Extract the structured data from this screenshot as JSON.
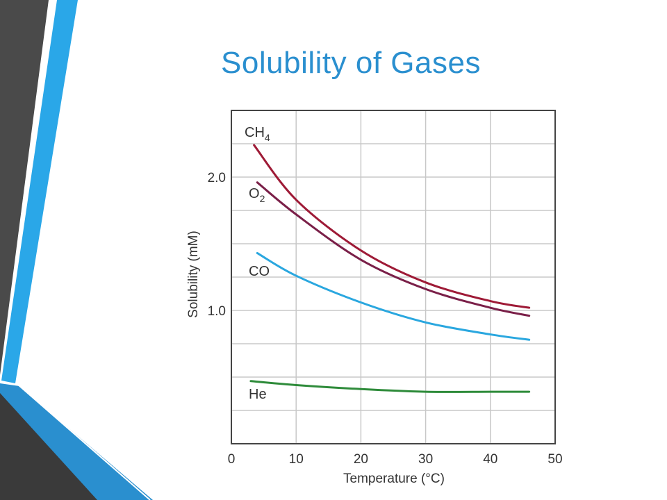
{
  "slide": {
    "title": "Solubility of Gases"
  },
  "chart_data": {
    "type": "line",
    "title": "",
    "xlabel": "Temperature (°C)",
    "ylabel": "Solubility (mM)",
    "xlim": [
      0,
      50
    ],
    "ylim": [
      0,
      2.5
    ],
    "x_ticks": [
      0,
      10,
      20,
      30,
      40,
      50
    ],
    "x_tick_labels": [
      "0",
      "10",
      "20",
      "30",
      "40",
      "50"
    ],
    "y_ticks": [
      1.0,
      2.0
    ],
    "y_tick_labels": [
      "1.0",
      "2.0"
    ],
    "grid": true,
    "series": [
      {
        "name": "CH4",
        "label_main": "CH",
        "label_sub": "4",
        "color": "#9e1a36",
        "x": [
          3.5,
          10,
          20,
          30,
          40,
          46
        ],
        "y": [
          2.24,
          1.83,
          1.45,
          1.21,
          1.07,
          1.02
        ]
      },
      {
        "name": "O2",
        "label_main": "O",
        "label_sub": "2",
        "color": "#7a1f48",
        "x": [
          4,
          10,
          20,
          30,
          40,
          46
        ],
        "y": [
          1.96,
          1.72,
          1.38,
          1.16,
          1.02,
          0.96
        ]
      },
      {
        "name": "CO",
        "label_main": "CO",
        "label_sub": "",
        "color": "#2aa7df",
        "x": [
          4,
          10,
          20,
          30,
          40,
          46
        ],
        "y": [
          1.43,
          1.26,
          1.06,
          0.91,
          0.82,
          0.78
        ]
      },
      {
        "name": "He",
        "label_main": "He",
        "label_sub": "",
        "color": "#2e8b3a",
        "x": [
          3,
          10,
          20,
          30,
          40,
          46
        ],
        "y": [
          0.47,
          0.44,
          0.41,
          0.39,
          0.39,
          0.39
        ]
      }
    ]
  }
}
